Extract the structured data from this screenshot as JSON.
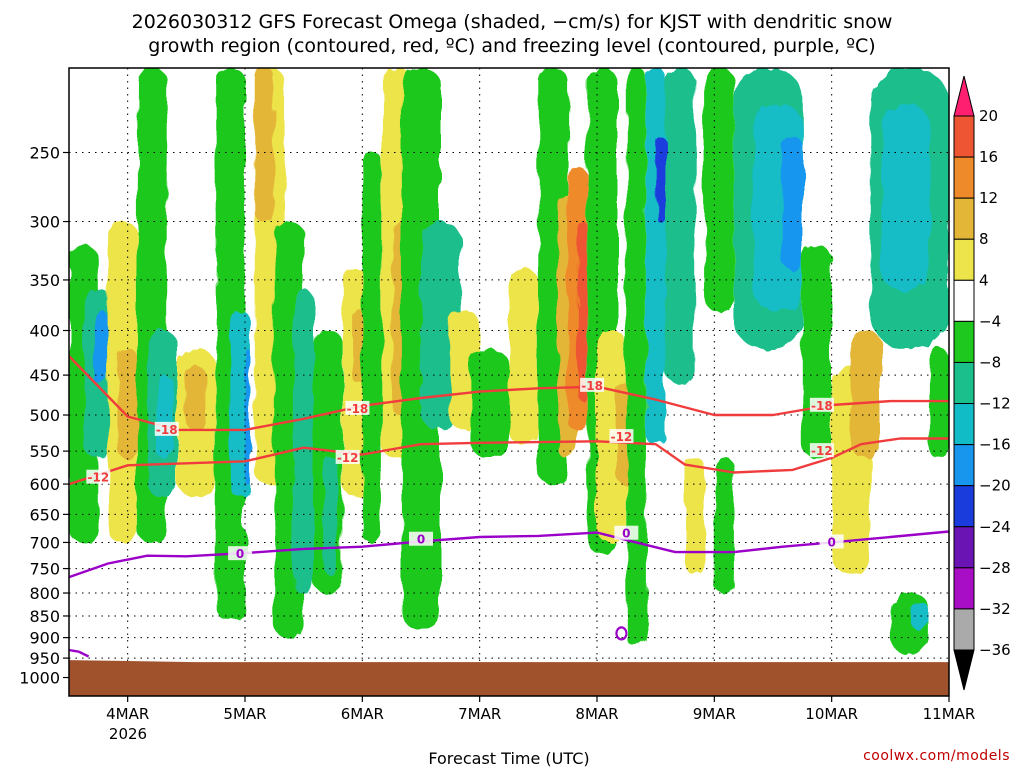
{
  "title_line1": "2026030312 GFS Forecast Omega (shaded, −cm/s) for KJST with dendritic snow",
  "title_line2": "growth region (contoured, red, ºC) and freezing level (contoured, purple, ºC)",
  "xlabel": "Forecast Time (UTC)",
  "credit": "coolwx.com/models",
  "chart_data": {
    "type": "heatmap",
    "title": "2026030312 GFS Forecast Omega (shaded, −cm/s) for KJST with dendritic snow growth region (contoured, red, ºC) and freezing level (contoured, purple, ºC)",
    "xlabel": "Forecast Time (UTC)",
    "ylabel": "",
    "x_ticks": [
      "4MAR",
      "5MAR",
      "6MAR",
      "7MAR",
      "8MAR",
      "9MAR",
      "10MAR",
      "11MAR"
    ],
    "x_tick_sublabel": "2026",
    "x_tick_hours": [
      12,
      36,
      60,
      84,
      108,
      132,
      156,
      180
    ],
    "xlim": [
      0,
      180
    ],
    "y_ticks": [
      250,
      300,
      350,
      400,
      450,
      500,
      550,
      600,
      650,
      700,
      750,
      800,
      850,
      900,
      950,
      1000
    ],
    "ylim": [
      200,
      1050
    ],
    "y_scale": "log",
    "y_reversed": true,
    "grid": true,
    "colorbar": {
      "labels": [
        "20",
        "16",
        "12",
        "8",
        "4",
        "−4",
        "−8",
        "−12",
        "−16",
        "−20",
        "−24",
        "−28",
        "−32",
        "−36"
      ],
      "boundaries": [
        20,
        16,
        12,
        8,
        4,
        -4,
        -8,
        -12,
        -16,
        -20,
        -24,
        -28,
        -32,
        -36
      ],
      "colors": [
        "#ff1f70",
        "#ee5533",
        "#ee8a2a",
        "#e4b638",
        "#ece44a",
        "#ffffff",
        "#1ec81e",
        "#1abf8c",
        "#12bcc6",
        "#1896ee",
        "#1a3cdd",
        "#6a14b4",
        "#a80ec6",
        "#aaaaaa",
        "#000000"
      ]
    },
    "contours": [
      {
        "name": "-18",
        "color": "#f03c3c",
        "points": [
          [
            0,
            428
          ],
          [
            12,
            502
          ],
          [
            22,
            520
          ],
          [
            36,
            520
          ],
          [
            48,
            505
          ],
          [
            60,
            488
          ],
          [
            72,
            478
          ],
          [
            84,
            470
          ],
          [
            96,
            466
          ],
          [
            108,
            464
          ],
          [
            120,
            480
          ],
          [
            132,
            500
          ],
          [
            144,
            500
          ],
          [
            156,
            487
          ],
          [
            168,
            482
          ],
          [
            180,
            482
          ]
        ],
        "labels": [
          [
            20,
            520
          ],
          [
            59,
            492
          ],
          [
            107,
            463
          ],
          [
            154,
            488
          ]
        ]
      },
      {
        "name": "-12",
        "color": "#f03c3c",
        "points": [
          [
            0,
            600
          ],
          [
            12,
            571
          ],
          [
            24,
            568
          ],
          [
            36,
            565
          ],
          [
            48,
            545
          ],
          [
            60,
            555
          ],
          [
            72,
            540
          ],
          [
            84,
            538
          ],
          [
            96,
            537
          ],
          [
            108,
            536
          ],
          [
            120,
            540
          ],
          [
            126,
            570
          ],
          [
            136,
            582
          ],
          [
            148,
            578
          ],
          [
            156,
            560
          ],
          [
            162,
            540
          ],
          [
            170,
            532
          ],
          [
            180,
            532
          ]
        ],
        "labels": [
          [
            6,
            590
          ],
          [
            57,
            560
          ],
          [
            113,
            530
          ],
          [
            154,
            550
          ]
        ]
      },
      {
        "name": "0",
        "color": "#9b00c8",
        "points": [
          [
            0,
            767
          ],
          [
            8,
            740
          ],
          [
            16,
            725
          ],
          [
            24,
            726
          ],
          [
            36,
            720
          ],
          [
            48,
            712
          ],
          [
            60,
            708
          ],
          [
            72,
            698
          ],
          [
            84,
            690
          ],
          [
            96,
            688
          ],
          [
            108,
            682
          ],
          [
            116,
            700
          ],
          [
            124,
            718
          ],
          [
            136,
            718
          ],
          [
            146,
            708
          ],
          [
            156,
            700
          ],
          [
            168,
            690
          ],
          [
            180,
            680
          ]
        ],
        "labels": [
          [
            35,
            722
          ],
          [
            72,
            695
          ],
          [
            114,
            684
          ],
          [
            156,
            700
          ]
        ]
      },
      {
        "name": "0",
        "color": "#9b00c8",
        "points": [
          [
            -1,
            928
          ],
          [
            2,
            934
          ],
          [
            4,
            946
          ]
        ],
        "labels": []
      }
    ],
    "terrain": {
      "color": "#a0522d",
      "surface_pressure": [
        955,
        960,
        960,
        960,
        960,
        960,
        960,
        960
      ]
    }
  }
}
